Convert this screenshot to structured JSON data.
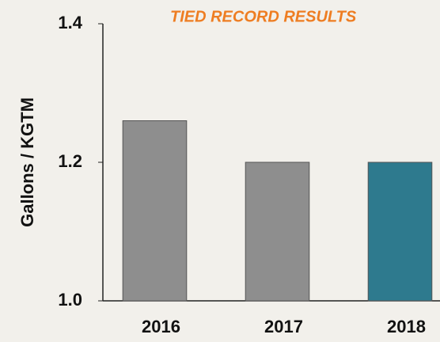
{
  "chart_data": {
    "type": "bar",
    "title": "TIED RECORD RESULTS",
    "y_label": "Gallons / KGTM",
    "categories": [
      "2016",
      "2017",
      "2018"
    ],
    "values": [
      1.26,
      1.2,
      1.2
    ],
    "colors": [
      "#8e8e8e",
      "#8e8e8e",
      "#2e7a8e"
    ],
    "ylim": [
      1,
      1.4
    ],
    "yticks": [
      {
        "value": 1,
        "label": "1.0"
      },
      1.2,
      1.4
    ],
    "grid": false
  }
}
